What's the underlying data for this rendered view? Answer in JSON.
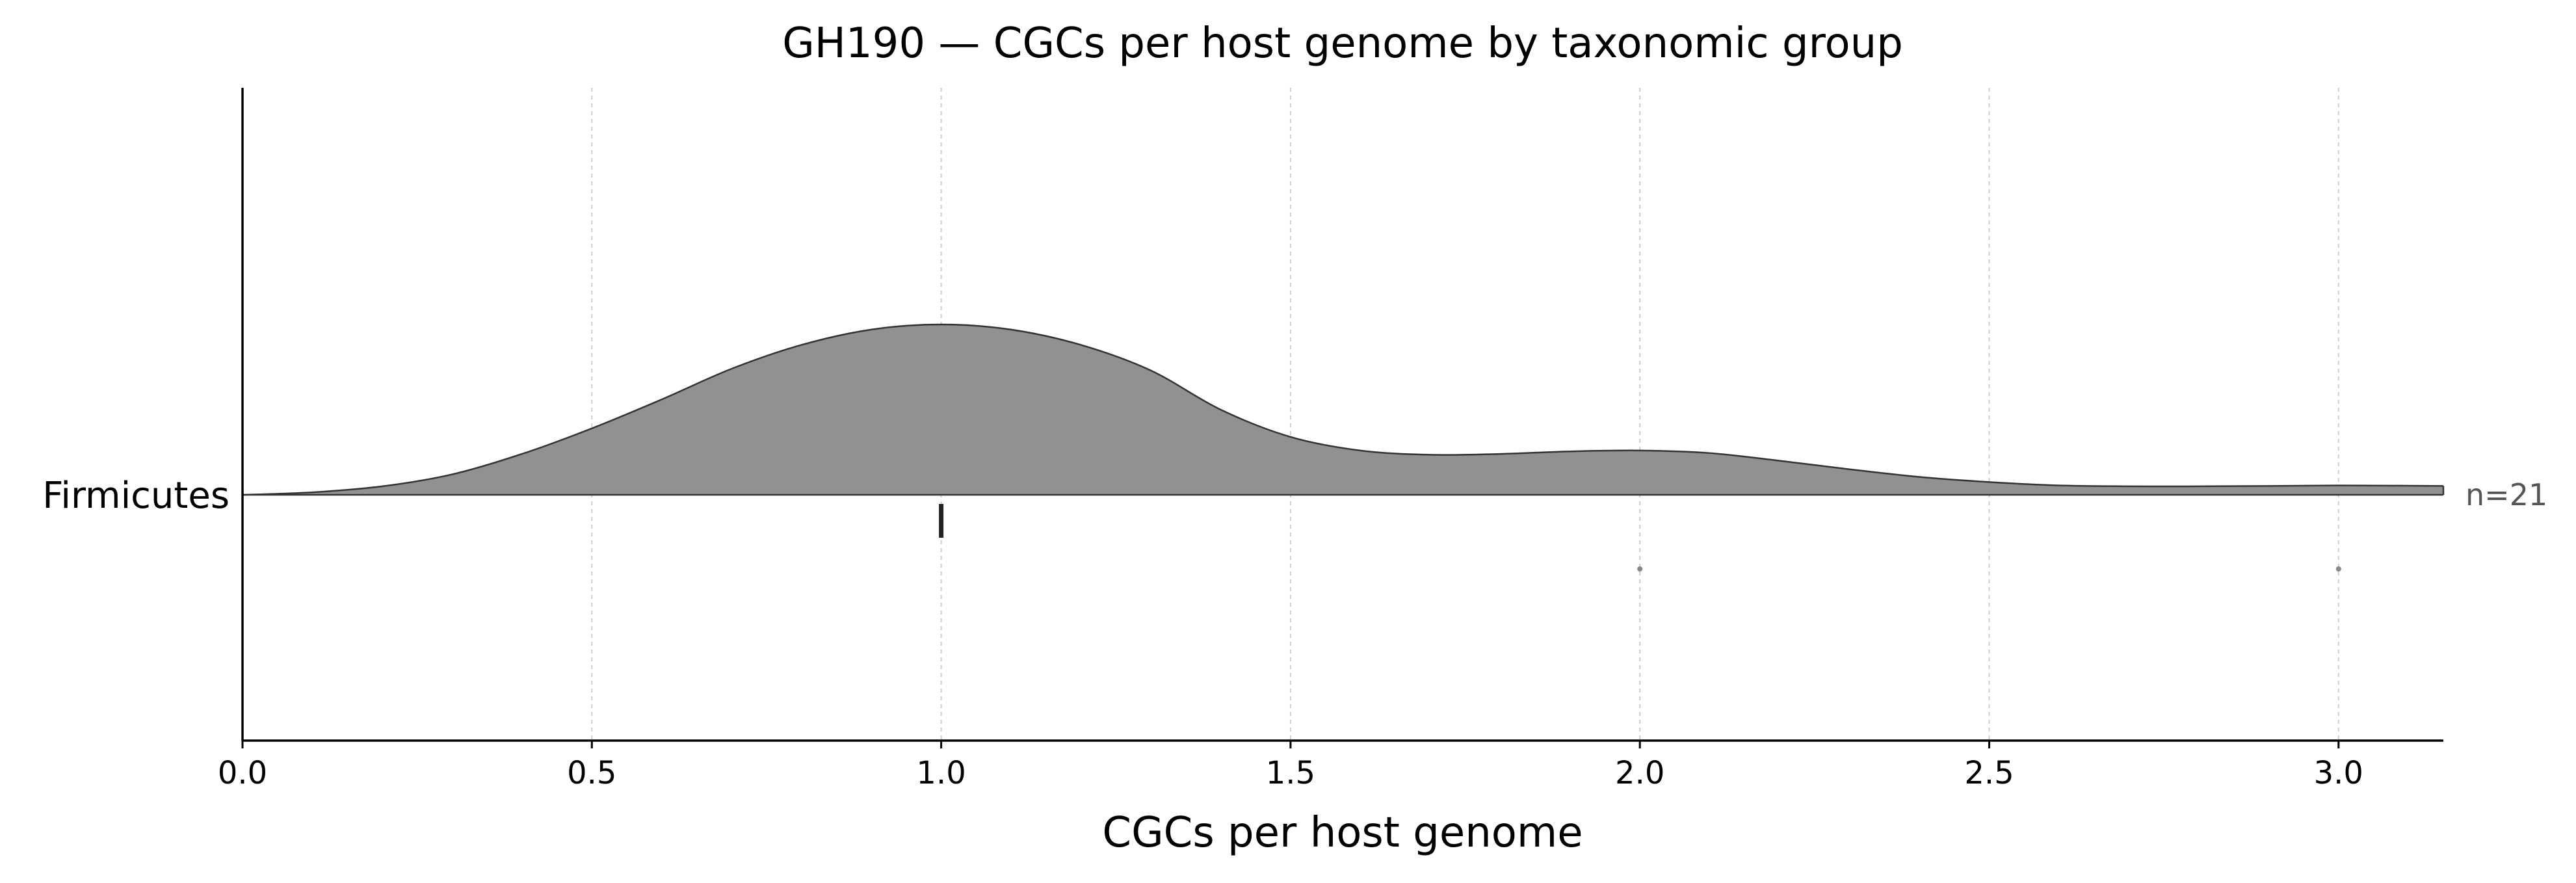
{
  "chart_data": {
    "type": "ridgeline",
    "title": "GH190 — CGCs per host genome by taxonomic group",
    "xlabel": "CGCs per host genome",
    "xlim": [
      0.0,
      3.15
    ],
    "xticks": [
      "0.0",
      "0.5",
      "1.0",
      "1.5",
      "2.0",
      "2.5",
      "3.0"
    ],
    "xtick_values": [
      0.0,
      0.5,
      1.0,
      1.5,
      2.0,
      2.5,
      3.0
    ],
    "grid": "vertical dashed",
    "colors": {
      "fill": "#919191",
      "outline": "#333333",
      "point": "#888888",
      "median": "#222222"
    },
    "groups": [
      {
        "name": "Firmicutes",
        "n_label": "n=21",
        "median": 1.0,
        "points": [
          2.0,
          3.0
        ],
        "density": {
          "x": [
            0.0,
            0.1,
            0.2,
            0.3,
            0.4,
            0.5,
            0.6,
            0.7,
            0.8,
            0.9,
            1.0,
            1.1,
            1.2,
            1.3,
            1.4,
            1.5,
            1.6,
            1.7,
            1.8,
            1.9,
            2.0,
            2.1,
            2.2,
            2.3,
            2.4,
            2.5,
            2.6,
            2.7,
            2.8,
            2.9,
            3.0,
            3.15
          ],
          "y": [
            0.0,
            0.015,
            0.05,
            0.12,
            0.24,
            0.39,
            0.56,
            0.74,
            0.88,
            0.97,
            1.0,
            0.97,
            0.88,
            0.73,
            0.5,
            0.34,
            0.26,
            0.235,
            0.24,
            0.255,
            0.26,
            0.245,
            0.2,
            0.15,
            0.105,
            0.075,
            0.055,
            0.05,
            0.05,
            0.052,
            0.055,
            0.052
          ]
        }
      }
    ]
  }
}
